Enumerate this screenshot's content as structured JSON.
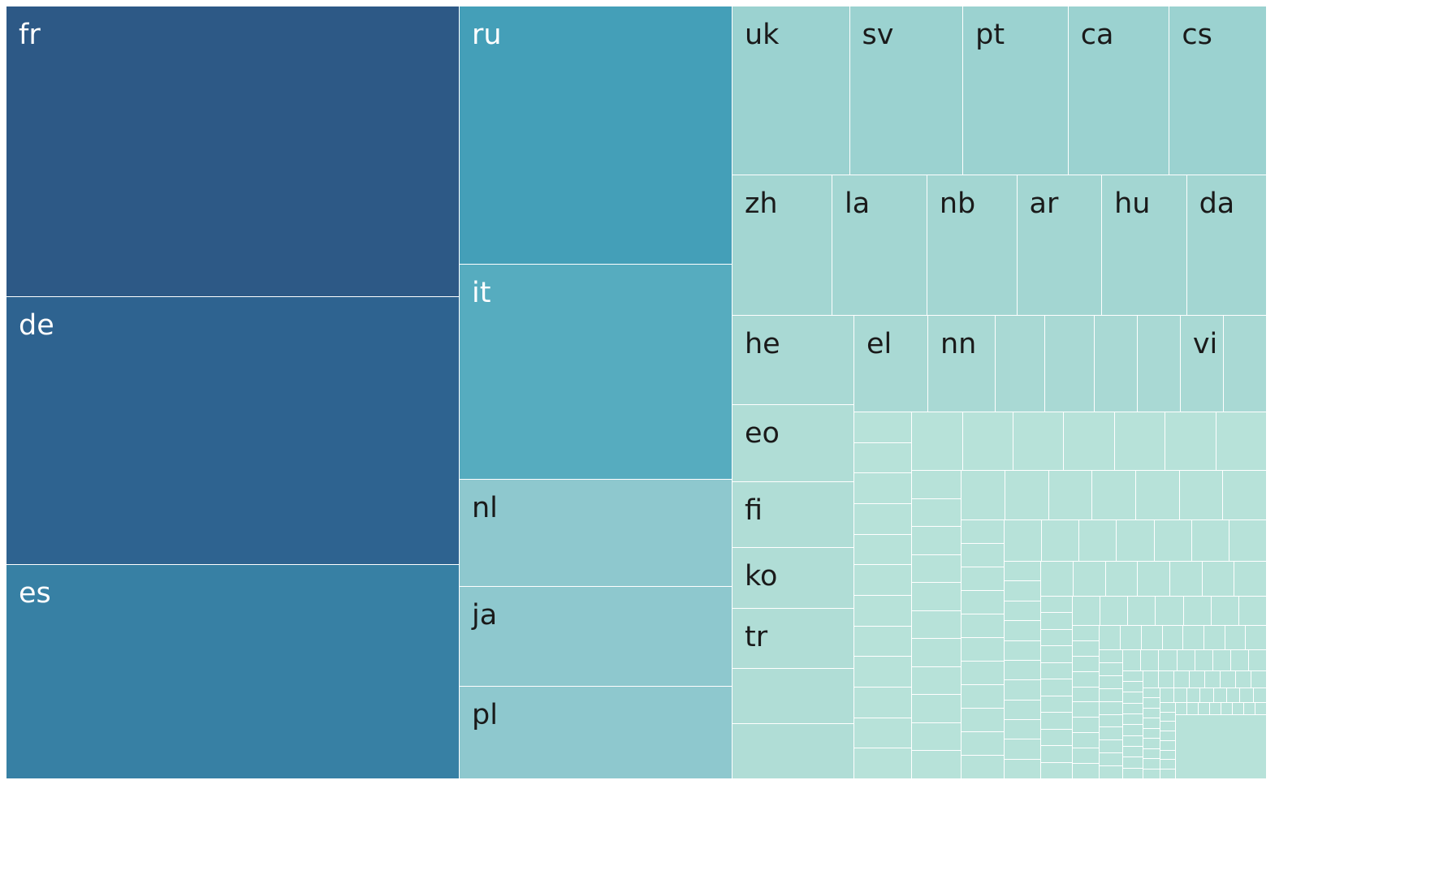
{
  "chart_data": {
    "type": "treemap",
    "colors": {
      "large": [
        "#2d5986",
        "#2e6390",
        "#3780a4",
        "#449fb8",
        "#56acbf"
      ],
      "medium": "#8ec8ce",
      "small": [
        "#9bd2d0",
        "#a3d6d2",
        "#a9d9d4",
        "#b0ddd6",
        "#b7e2d9"
      ]
    },
    "leaves": [
      {
        "label": "fr",
        "value": 201,
        "color": "#2d5986"
      },
      {
        "label": "de",
        "value": 185,
        "color": "#2e6390"
      },
      {
        "label": "es",
        "value": 148,
        "color": "#3780a4"
      },
      {
        "label": "ru",
        "value": 106,
        "color": "#449fb8"
      },
      {
        "label": "it",
        "value": 88,
        "color": "#56acbf"
      },
      {
        "label": "nl",
        "value": 44,
        "color": "#8ec8ce"
      },
      {
        "label": "ja",
        "value": 41,
        "color": "#8ec8ce"
      },
      {
        "label": "pl",
        "value": 38,
        "color": "#8ec8ce"
      },
      {
        "label": "uk",
        "value": 29,
        "color": "#9bd2d0"
      },
      {
        "label": "sv",
        "value": 28,
        "color": "#9bd2d0"
      },
      {
        "label": "pt",
        "value": 26,
        "color": "#9bd2d0"
      },
      {
        "label": "ca",
        "value": 25,
        "color": "#9bd2d0"
      },
      {
        "label": "cs",
        "value": 24,
        "color": "#9bd2d0"
      },
      {
        "label": "zh",
        "value": 20,
        "color": "#a3d6d2"
      },
      {
        "label": "la",
        "value": 19,
        "color": "#a3d6d2"
      },
      {
        "label": "nb",
        "value": 18,
        "color": "#a3d6d2"
      },
      {
        "label": "ar",
        "value": 17,
        "color": "#a3d6d2"
      },
      {
        "label": "hu",
        "value": 17,
        "color": "#a3d6d2"
      },
      {
        "label": "da",
        "value": 16,
        "color": "#a3d6d2"
      },
      {
        "label": "he",
        "value": 16,
        "color": "#a9d9d4"
      },
      {
        "label": "el",
        "value": 12,
        "color": "#a9d9d4"
      },
      {
        "label": "nn",
        "value": 11,
        "color": "#a9d9d4"
      },
      {
        "label": "",
        "value": 8,
        "color": "#a9d9d4"
      },
      {
        "label": "",
        "value": 8,
        "color": "#a9d9d4"
      },
      {
        "label": "",
        "value": 7,
        "color": "#a9d9d4"
      },
      {
        "label": "",
        "value": 7,
        "color": "#a9d9d4"
      },
      {
        "label": "vi",
        "value": 7,
        "color": "#a9d9d4"
      },
      {
        "label": "",
        "value": 7,
        "color": "#a9d9d4"
      },
      {
        "label": "eo",
        "value": 14,
        "color": "#b0ddd6"
      },
      {
        "label": "fi",
        "value": 12,
        "color": "#b0ddd6"
      },
      {
        "label": "ko",
        "value": 11,
        "color": "#b0ddd6"
      },
      {
        "label": "tr",
        "value": 11,
        "color": "#b0ddd6"
      },
      {
        "label": "",
        "value": 10,
        "color": "#b0ddd6"
      },
      {
        "label": "",
        "value": 10,
        "color": "#b0ddd6"
      }
    ],
    "minor_value_total": 180,
    "minor_color": "#b7e2d9"
  }
}
